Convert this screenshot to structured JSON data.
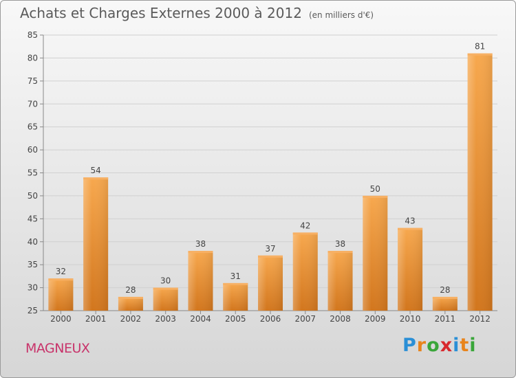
{
  "title": "Achats et Charges Externes 2000 à 2012",
  "subtitle": "(en milliers d'€)",
  "commune": "MAGNEUX",
  "logo": {
    "text": "Proxiti",
    "letters": [
      "P",
      "r",
      "o",
      "x",
      "i",
      "t",
      "i"
    ],
    "colors": [
      "#2a8fd6",
      "#e8841c",
      "#3aa63a",
      "#d8282d",
      "#2a8fd6",
      "#e8841c",
      "#3aa63a"
    ]
  },
  "chart_data": {
    "type": "bar",
    "categories": [
      "2000",
      "2001",
      "2002",
      "2003",
      "2004",
      "2005",
      "2006",
      "2007",
      "2008",
      "2009",
      "2010",
      "2011",
      "2012"
    ],
    "values": [
      32,
      54,
      28,
      30,
      38,
      31,
      37,
      42,
      38,
      50,
      43,
      28,
      81
    ],
    "title": "Achats et Charges Externes 2000 à 2012",
    "subtitle": "(en milliers d'€)",
    "xlabel": "",
    "ylabel": "",
    "ylim": [
      25,
      85
    ],
    "yticks": [
      25,
      30,
      35,
      40,
      45,
      50,
      55,
      60,
      65,
      70,
      75,
      80,
      85
    ],
    "grid": true,
    "data_labels": true,
    "bar_color": "#f09a3c"
  }
}
